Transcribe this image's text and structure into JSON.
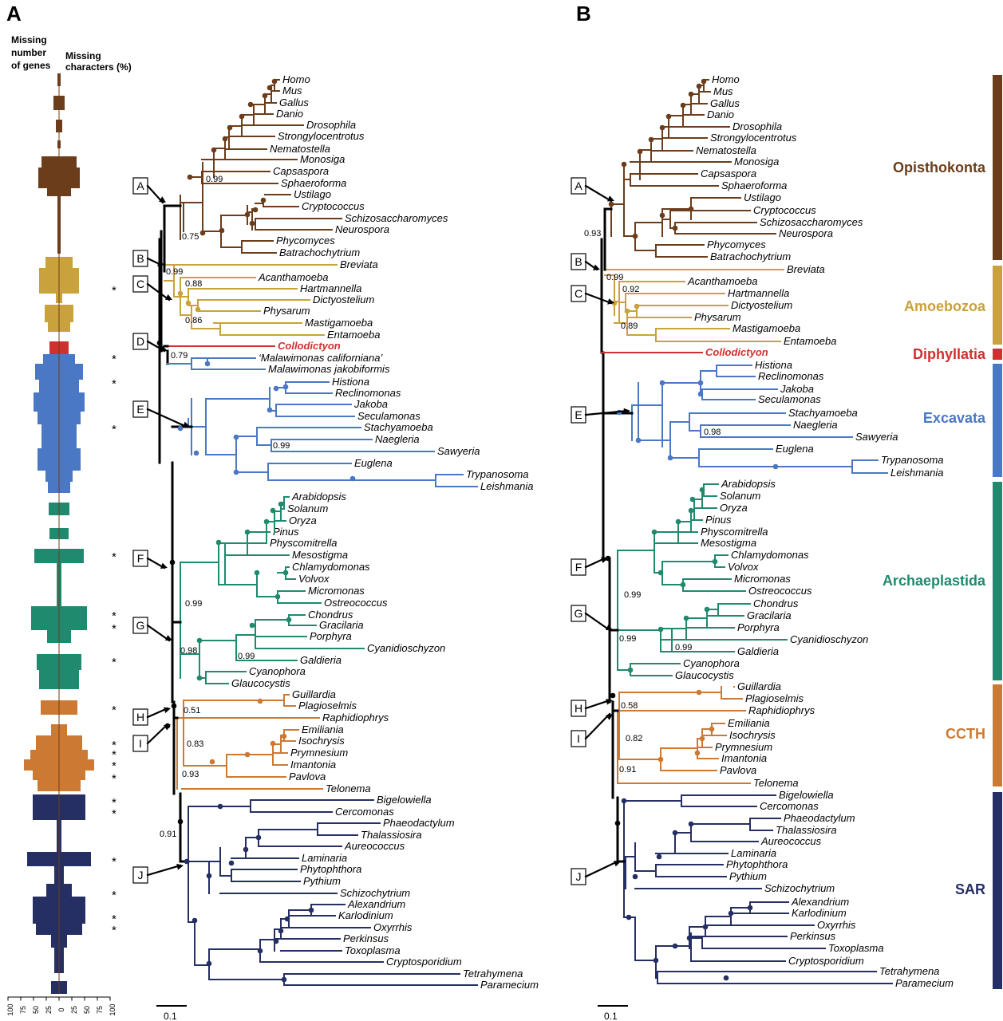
{
  "panels": {
    "a": "A",
    "b": "B"
  },
  "headers": {
    "missing_genes": [
      "Missing",
      "number",
      "of genes"
    ],
    "missing_chars": [
      "Missing",
      "characters (%)"
    ]
  },
  "axis": {
    "ticks": [
      "100",
      "75",
      "50",
      "25",
      "0",
      "25",
      "50",
      "75",
      "100"
    ]
  },
  "scale_label": "0.1",
  "node_labels": [
    "A",
    "B",
    "C",
    "D",
    "E",
    "F",
    "G",
    "H",
    "I",
    "J"
  ],
  "colors": {
    "Opisthokonta": "#6b3d1a",
    "Amoebozoa": "#c9a23d",
    "Diphyllatia": "#d0302e",
    "Excavata": "#4a78c4",
    "Archaeplastida": "#1f8a6e",
    "CCTH": "#cc7a33",
    "SAR": "#262f63",
    "backbone": "#000000"
  },
  "groups": [
    {
      "name": "Opisthokonta",
      "taxa": [
        "Homo",
        "Mus",
        "Gallus",
        "Danio",
        "Drosophila",
        "Strongylocentrotus",
        "Nematostella",
        "Monosiga",
        "Capsaspora",
        "Sphaeroforma",
        "Ustilago",
        "Cryptococcus",
        "Schizosaccharomyces",
        "Neurospora",
        "Phycomyces",
        "Batrachochytrium"
      ]
    },
    {
      "name": "Amoebozoa",
      "taxa": [
        "Breviata",
        "Acanthamoeba",
        "Hartmannella",
        "Dictyostelium",
        "Physarum",
        "Mastigamoeba",
        "Entamoeba"
      ]
    },
    {
      "name": "Diphyllatia",
      "taxa": [
        "Collodictyon"
      ]
    },
    {
      "name": "Excavata",
      "taxa": [
        "Histiona",
        "Reclinomonas",
        "Jakoba",
        "Seculamonas",
        "Stachyamoeba",
        "Naegleria",
        "Sawyeria",
        "Euglena",
        "Trypanosoma",
        "Leishmania"
      ]
    },
    {
      "name": "Archaeplastida",
      "taxa": [
        "Arabidopsis",
        "Solanum",
        "Oryza",
        "Pinus",
        "Physcomitrella",
        "Mesostigma",
        "Chlamydomonas",
        "Volvox",
        "Micromonas",
        "Ostreococcus",
        "Chondrus",
        "Gracilaria",
        "Porphyra",
        "Cyanidioschyzon",
        "Galdieria",
        "Cyanophora",
        "Glaucocystis"
      ]
    },
    {
      "name": "CCTH",
      "taxa": [
        "Guillardia",
        "Plagioselmis",
        "Raphidiophrys",
        "Emiliania",
        "Isochrysis",
        "Prymnesium",
        "Imantonia",
        "Pavlova",
        "Telonema"
      ]
    },
    {
      "name": "SAR",
      "taxa": [
        "Bigelowiella",
        "Cercomonas",
        "Phaeodactylum",
        "Thalassiosira",
        "Aureococcus",
        "Laminaria",
        "Phytophthora",
        "Pythium",
        "Schizochytrium",
        "Alexandrium",
        "Karlodinium",
        "Oxyrrhis",
        "Perkinsus",
        "Toxoplasma",
        "Cryptosporidium",
        "Tetrahymena",
        "Paramecium"
      ]
    }
  ],
  "tree_a": {
    "malawimonas": [
      "‘Malawimonas californiana’",
      "Malawimonas jakobiformis"
    ],
    "support": [
      "0.99",
      "0.75",
      "0.99",
      "0.88",
      "0.86",
      "0.79",
      "0.99",
      "0.99",
      "0.98",
      "0.99",
      "0.51",
      "0.83",
      "0.93",
      "0.91"
    ]
  },
  "tree_b": {
    "support": [
      "0.93",
      "0.99",
      "0.92",
      "0.89",
      "0.98",
      "0.99",
      "0.99",
      "0.99",
      "0.58",
      "0.82",
      "0.91"
    ]
  },
  "asterisk": "*"
}
